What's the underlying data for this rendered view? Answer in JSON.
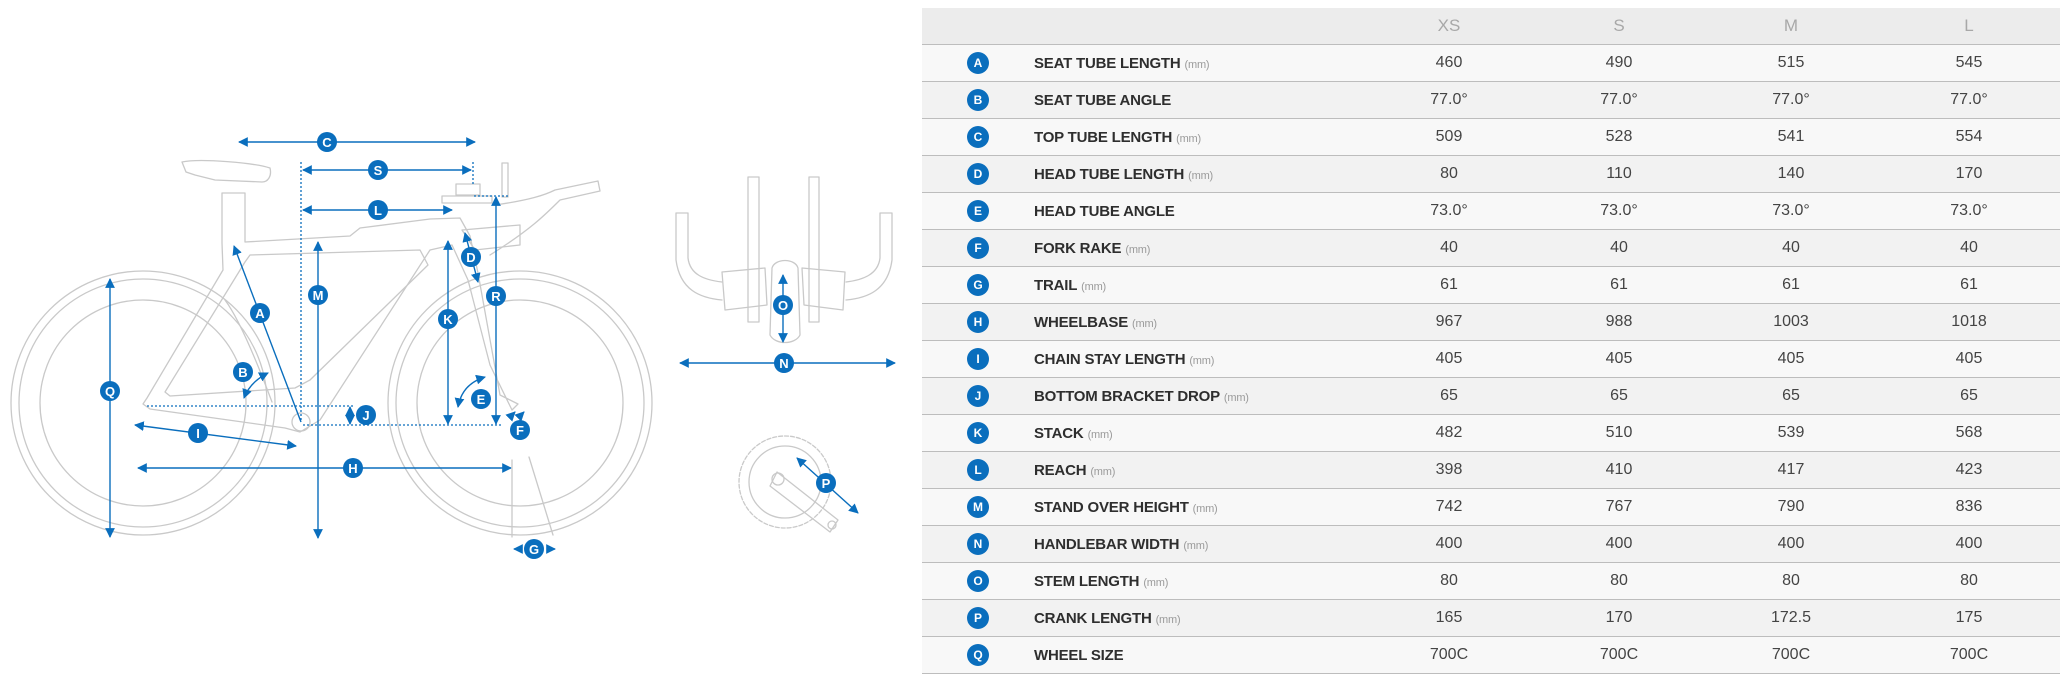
{
  "colors": {
    "accent": "#0a6ebd",
    "frame_line": "#c9c9c9",
    "header_bg": "#ececec"
  },
  "diagram": {
    "extra_labels": [
      "R",
      "S"
    ]
  },
  "table": {
    "sizes": [
      "XS",
      "S",
      "M",
      "L"
    ],
    "rows": [
      {
        "letter": "A",
        "name": "SEAT TUBE LENGTH",
        "unit": "(mm)",
        "values": [
          "460",
          "490",
          "515",
          "545"
        ]
      },
      {
        "letter": "B",
        "name": "SEAT TUBE ANGLE",
        "unit": "",
        "values": [
          "77.0°",
          "77.0°",
          "77.0°",
          "77.0°"
        ]
      },
      {
        "letter": "C",
        "name": "TOP TUBE LENGTH",
        "unit": "(mm)",
        "values": [
          "509",
          "528",
          "541",
          "554"
        ]
      },
      {
        "letter": "D",
        "name": "HEAD TUBE LENGTH",
        "unit": "(mm)",
        "values": [
          "80",
          "110",
          "140",
          "170"
        ]
      },
      {
        "letter": "E",
        "name": "HEAD TUBE ANGLE",
        "unit": "",
        "values": [
          "73.0°",
          "73.0°",
          "73.0°",
          "73.0°"
        ]
      },
      {
        "letter": "F",
        "name": "FORK RAKE",
        "unit": "(mm)",
        "values": [
          "40",
          "40",
          "40",
          "40"
        ]
      },
      {
        "letter": "G",
        "name": "TRAIL",
        "unit": "(mm)",
        "values": [
          "61",
          "61",
          "61",
          "61"
        ]
      },
      {
        "letter": "H",
        "name": "WHEELBASE",
        "unit": "(mm)",
        "values": [
          "967",
          "988",
          "1003",
          "1018"
        ]
      },
      {
        "letter": "I",
        "name": "CHAIN STAY LENGTH",
        "unit": "(mm)",
        "values": [
          "405",
          "405",
          "405",
          "405"
        ]
      },
      {
        "letter": "J",
        "name": "BOTTOM BRACKET DROP",
        "unit": "(mm)",
        "values": [
          "65",
          "65",
          "65",
          "65"
        ]
      },
      {
        "letter": "K",
        "name": "STACK",
        "unit": "(mm)",
        "values": [
          "482",
          "510",
          "539",
          "568"
        ]
      },
      {
        "letter": "L",
        "name": "REACH",
        "unit": "(mm)",
        "values": [
          "398",
          "410",
          "417",
          "423"
        ]
      },
      {
        "letter": "M",
        "name": "STAND OVER HEIGHT",
        "unit": "(mm)",
        "values": [
          "742",
          "767",
          "790",
          "836"
        ]
      },
      {
        "letter": "N",
        "name": "HANDLEBAR WIDTH",
        "unit": "(mm)",
        "values": [
          "400",
          "400",
          "400",
          "400"
        ]
      },
      {
        "letter": "O",
        "name": "STEM LENGTH",
        "unit": "(mm)",
        "values": [
          "80",
          "80",
          "80",
          "80"
        ]
      },
      {
        "letter": "P",
        "name": "CRANK LENGTH",
        "unit": "(mm)",
        "values": [
          "165",
          "170",
          "172.5",
          "175"
        ]
      },
      {
        "letter": "Q",
        "name": "WHEEL SIZE",
        "unit": "",
        "values": [
          "700C",
          "700C",
          "700C",
          "700C"
        ]
      }
    ]
  }
}
